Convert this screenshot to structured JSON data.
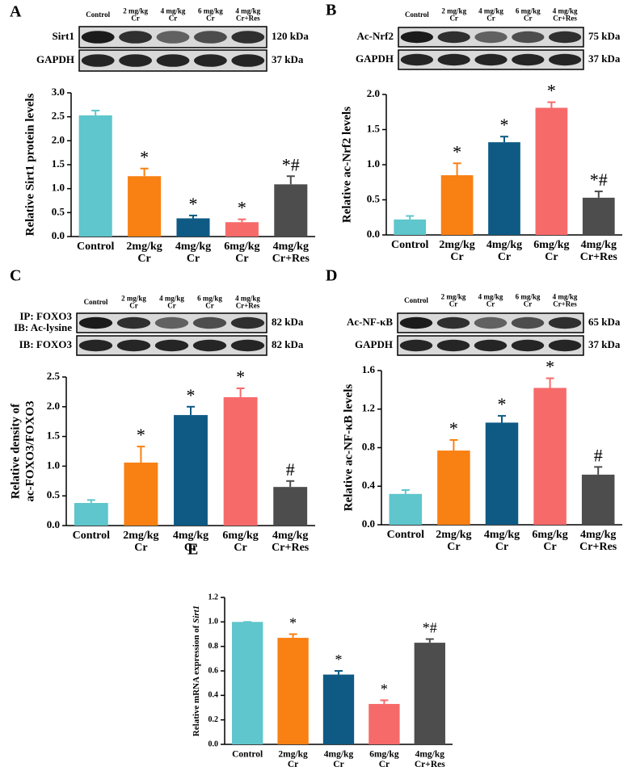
{
  "chart_data": [
    {
      "type": "bar",
      "panel": "A",
      "ylabel": [
        "Relative Sirt1 protein levels"
      ],
      "blot": {
        "lanes": [
          [
            "Control"
          ],
          [
            "2 mg/kg",
            "Cr"
          ],
          [
            "4 mg/kg",
            "Cr"
          ],
          [
            "6 mg/kg",
            "Cr"
          ],
          [
            "4 mg/kg",
            "Cr+Res"
          ]
        ],
        "rows": [
          {
            "label": [
              "Sirt1"
            ],
            "size": "120 kDa"
          },
          {
            "label": [
              "GAPDH"
            ],
            "size": "37 kDa"
          }
        ]
      },
      "categories": [
        [
          "Control"
        ],
        [
          "2mg/kg",
          "Cr"
        ],
        [
          "4mg/kg",
          "Cr"
        ],
        [
          "6mg/kg",
          "Cr"
        ],
        [
          "4mg/kg",
          "Cr+Res"
        ]
      ],
      "values": [
        2.53,
        1.26,
        0.38,
        0.3,
        1.09
      ],
      "errors": [
        0.1,
        0.16,
        0.06,
        0.06,
        0.17
      ],
      "annotations": [
        null,
        "*",
        "*",
        "*",
        "*#"
      ],
      "colors": [
        "#5ec6cc",
        "#f98012",
        "#0e5a84",
        "#f76a6a",
        "#4d4d4d"
      ],
      "ylim": [
        0,
        3
      ],
      "yticks": [
        {
          "value": 0,
          "label": "0.0"
        },
        0.5,
        {
          "value": 1,
          "label": "1.0"
        },
        1.5,
        {
          "value": 2,
          "label": "2.0"
        },
        2.5,
        {
          "value": 3,
          "label": "3.0"
        }
      ]
    },
    {
      "type": "bar",
      "panel": "B",
      "ylabel": [
        "Relative ac-Nrf2 levels"
      ],
      "blot": {
        "lanes": [
          [
            "Control"
          ],
          [
            "2 mg/kg",
            "Cr"
          ],
          [
            "4 mg/kg",
            "Cr"
          ],
          [
            "6 mg/kg",
            "Cr"
          ],
          [
            "4 mg/kg",
            "Cr+Res"
          ]
        ],
        "rows": [
          {
            "label": [
              "Ac-Nrf2"
            ],
            "size": "75 kDa"
          },
          {
            "label": [
              "GAPDH"
            ],
            "size": "37 kDa"
          }
        ]
      },
      "categories": [
        [
          "Control"
        ],
        [
          "2mg/kg",
          "Cr"
        ],
        [
          "4mg/kg",
          "Cr"
        ],
        [
          "6mg/kg",
          "Cr"
        ],
        [
          "4mg/kg",
          "Cr+Res"
        ]
      ],
      "values": [
        0.22,
        0.85,
        1.32,
        1.81,
        0.53
      ],
      "errors": [
        0.05,
        0.17,
        0.08,
        0.08,
        0.09
      ],
      "annotations": [
        null,
        "*",
        "*",
        "*",
        "*#"
      ],
      "colors": [
        "#5ec6cc",
        "#f98012",
        "#0e5a84",
        "#f76a6a",
        "#4d4d4d"
      ],
      "ylim": [
        0,
        2
      ],
      "yticks": [
        {
          "value": 0,
          "label": "0.0"
        },
        0.5,
        {
          "value": 1,
          "label": "1.0"
        },
        1.5,
        {
          "value": 2,
          "label": "2.0"
        }
      ]
    },
    {
      "type": "bar",
      "panel": "C",
      "ylabel": [
        "Relative density of",
        "ac-FOXO3/FOXO3"
      ],
      "blot": {
        "lanes": [
          [
            "Control"
          ],
          [
            "2 mg/kg",
            "Cr"
          ],
          [
            "4 mg/kg",
            "Cr"
          ],
          [
            "6 mg/kg",
            "Cr"
          ],
          [
            "4 mg/kg",
            "Cr+Res"
          ]
        ],
        "rows": [
          {
            "label": [
              "IP: FOXO3",
              "IB: Ac-lysine"
            ],
            "size": "82 kDa"
          },
          {
            "label": [
              "IB: FOXO3"
            ],
            "size": "82 kDa"
          }
        ]
      },
      "categories": [
        [
          "Control"
        ],
        [
          "2mg/kg",
          "Cr"
        ],
        [
          "4mg/kg",
          "Cr"
        ],
        [
          "6mg/kg",
          "Cr"
        ],
        [
          "4mg/kg",
          "Cr+Res"
        ]
      ],
      "values": [
        0.38,
        1.06,
        1.86,
        2.16,
        0.65
      ],
      "errors": [
        0.05,
        0.27,
        0.14,
        0.15,
        0.1
      ],
      "annotations": [
        null,
        "*",
        "*",
        "*",
        "#"
      ],
      "colors": [
        "#5ec6cc",
        "#f98012",
        "#0e5a84",
        "#f76a6a",
        "#4d4d4d"
      ],
      "ylim": [
        0,
        2.5
      ],
      "yticks": [
        {
          "value": 0,
          "label": "0.0"
        },
        0.5,
        {
          "value": 1,
          "label": "1.0"
        },
        1.5,
        {
          "value": 2,
          "label": "2.0"
        },
        2.5
      ]
    },
    {
      "type": "bar",
      "panel": "D",
      "ylabel": [
        "Relative ac-NF-κB levels"
      ],
      "blot": {
        "lanes": [
          [
            "Control"
          ],
          [
            "2 mg/kg",
            "Cr"
          ],
          [
            "4 mg/kg",
            "Cr"
          ],
          [
            "6 mg/kg",
            "Cr"
          ],
          [
            "4 mg/kg",
            "Cr+Res"
          ]
        ],
        "rows": [
          {
            "label": [
              "Ac-NF-κB"
            ],
            "size": "65 kDa"
          },
          {
            "label": [
              "GAPDH"
            ],
            "size": "37 kDa"
          }
        ]
      },
      "categories": [
        [
          "Control"
        ],
        [
          "2mg/kg",
          "Cr"
        ],
        [
          "4mg/kg",
          "Cr"
        ],
        [
          "6mg/kg",
          "Cr"
        ],
        [
          "4mg/kg",
          "Cr+Res"
        ]
      ],
      "values": [
        0.32,
        0.77,
        1.06,
        1.42,
        0.52
      ],
      "errors": [
        0.04,
        0.11,
        0.07,
        0.1,
        0.08
      ],
      "annotations": [
        null,
        "*",
        "*",
        "*",
        "#"
      ],
      "colors": [
        "#5ec6cc",
        "#f98012",
        "#0e5a84",
        "#f76a6a",
        "#4d4d4d"
      ],
      "ylim": [
        0,
        1.6
      ],
      "yticks": [
        {
          "value": 0,
          "label": "0.0"
        },
        0.4,
        0.8,
        1.2,
        1.6
      ]
    },
    {
      "type": "bar",
      "panel": "E",
      "ylabel": [
        "Relative mRNA expression of ",
        "Sirt1"
      ],
      "categories": [
        [
          "Control"
        ],
        [
          "2mg/kg",
          "Cr"
        ],
        [
          "4mg/kg",
          "Cr"
        ],
        [
          "6mg/kg",
          "Cr"
        ],
        [
          "4mg/kg",
          "Cr+Res"
        ]
      ],
      "values": [
        1.0,
        0.87,
        0.57,
        0.33,
        0.83
      ],
      "errors": [
        0,
        0.03,
        0.03,
        0.03,
        0.03
      ],
      "annotations": [
        null,
        "*",
        "*",
        "*",
        "*#"
      ],
      "colors": [
        "#5ec6cc",
        "#f98012",
        "#0e5a84",
        "#f76a6a",
        "#4d4d4d"
      ],
      "ylim": [
        0,
        1.2
      ],
      "yticks": [
        {
          "value": 0,
          "label": "0.0"
        },
        0.2,
        0.4,
        0.6,
        0.8,
        {
          "value": 1,
          "label": "1.0"
        },
        1.2
      ]
    }
  ]
}
